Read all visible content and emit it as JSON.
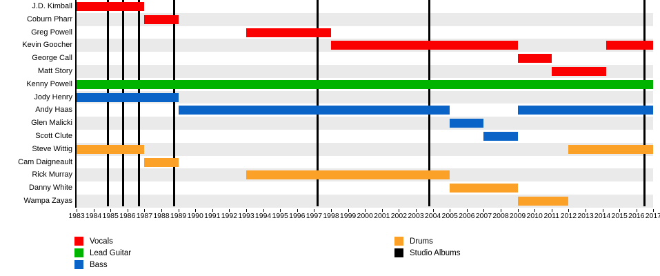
{
  "chart_data": {
    "type": "gantt-timeline",
    "x_axis": {
      "start": 1983,
      "end": 2017,
      "tick_interval": 1,
      "tick_labels": [
        "1983",
        "1984",
        "1985",
        "1986",
        "1987",
        "1988",
        "1989",
        "1990",
        "1991",
        "1992",
        "1993",
        "1994",
        "1995",
        "1996",
        "1997",
        "1998",
        "1999",
        "2000",
        "2001",
        "2002",
        "2003",
        "2004",
        "2005",
        "2006",
        "2007",
        "2008",
        "2009",
        "2010",
        "2011",
        "2012",
        "2013",
        "2014",
        "2015",
        "2016",
        "2017"
      ]
    },
    "rows": [
      {
        "name": "J.D. Kimball",
        "role": "Vocals",
        "stints": [
          [
            1983,
            1987
          ]
        ]
      },
      {
        "name": "Coburn Pharr",
        "role": "Vocals",
        "stints": [
          [
            1987,
            1989
          ]
        ]
      },
      {
        "name": "Greg Powell",
        "role": "Vocals",
        "stints": [
          [
            1993,
            1998
          ]
        ]
      },
      {
        "name": "Kevin Goocher",
        "role": "Vocals",
        "stints": [
          [
            1998,
            2009
          ],
          [
            2014.2,
            2017
          ]
        ]
      },
      {
        "name": "George Call",
        "role": "Vocals",
        "stints": [
          [
            2009,
            2011
          ]
        ]
      },
      {
        "name": "Matt Story",
        "role": "Vocals",
        "stints": [
          [
            2011,
            2014.2
          ]
        ]
      },
      {
        "name": "Kenny Powell",
        "role": "Lead Guitar",
        "stints": [
          [
            1983,
            2017
          ]
        ]
      },
      {
        "name": "Jody Henry",
        "role": "Bass",
        "stints": [
          [
            1983,
            1989
          ]
        ]
      },
      {
        "name": "Andy Haas",
        "role": "Bass",
        "stints": [
          [
            1989,
            2005
          ],
          [
            2009,
            2017
          ]
        ]
      },
      {
        "name": "Glen Malicki",
        "role": "Bass",
        "stints": [
          [
            2005,
            2007
          ]
        ]
      },
      {
        "name": "Scott Clute",
        "role": "Bass",
        "stints": [
          [
            2007,
            2009
          ]
        ]
      },
      {
        "name": "Steve Wittig",
        "role": "Drums",
        "stints": [
          [
            1983,
            1987
          ],
          [
            2012,
            2017
          ]
        ]
      },
      {
        "name": "Cam Daigneault",
        "role": "Drums",
        "stints": [
          [
            1987,
            1989
          ]
        ]
      },
      {
        "name": "Rick Murray",
        "role": "Drums",
        "stints": [
          [
            1993,
            2005
          ]
        ]
      },
      {
        "name": "Danny White",
        "role": "Drums",
        "stints": [
          [
            2005,
            2009
          ]
        ]
      },
      {
        "name": "Wampa Zayas",
        "role": "Drums",
        "stints": [
          [
            2009,
            2012
          ]
        ]
      }
    ],
    "album_markers": [
      1984.83,
      1985.74,
      1986.68,
      1988.77,
      1997.21,
      2003.81,
      2016.48
    ],
    "colors": {
      "Vocals": "#FB0000",
      "Lead Guitar": "#00B300",
      "Bass": "#0A64C8",
      "Drums": "#FCA127",
      "Studio Albums": "#000000",
      "row_stripe": "#EAEAEA"
    },
    "legend": {
      "position": "bottom",
      "columns": [
        {
          "items": [
            {
              "label": "Vocals",
              "role": "Vocals"
            },
            {
              "label": "Lead Guitar",
              "role": "Lead Guitar"
            },
            {
              "label": "Bass",
              "role": "Bass"
            }
          ]
        },
        {
          "items": [
            {
              "label": "Drums",
              "role": "Drums"
            },
            {
              "label": "Studio Albums",
              "role": "Studio Albums"
            }
          ]
        }
      ]
    }
  }
}
